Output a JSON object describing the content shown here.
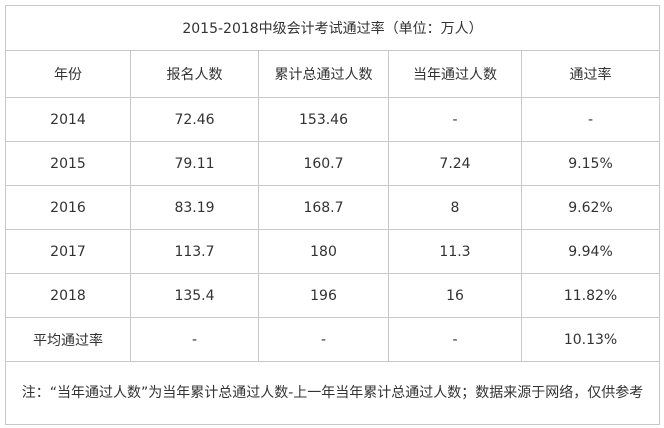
{
  "table": {
    "title": "2015-2018中级会计考试通过率（单位：万人）",
    "header": [
      "年份",
      "报名人数",
      "累计总通过人数",
      "当年通过人数",
      "通过率"
    ],
    "rows": [
      [
        "2014",
        "72.46",
        "153.46",
        "-",
        "-"
      ],
      [
        "2015",
        "79.11",
        "160.7",
        "7.24",
        "9.15%"
      ],
      [
        "2016",
        "83.19",
        "168.7",
        "8",
        "9.62%"
      ],
      [
        "2017",
        "113.7",
        "180",
        "11.3",
        "9.94%"
      ],
      [
        "2018",
        "135.4",
        "196",
        "16",
        "11.82%"
      ],
      [
        "平均通过率",
        "-",
        "-",
        "-",
        "10.13%"
      ]
    ],
    "note": "注：“当年通过人数”为当年累计总通过人数-上一年当年累计总通过人数；数据来源于网络，仅供参考"
  }
}
